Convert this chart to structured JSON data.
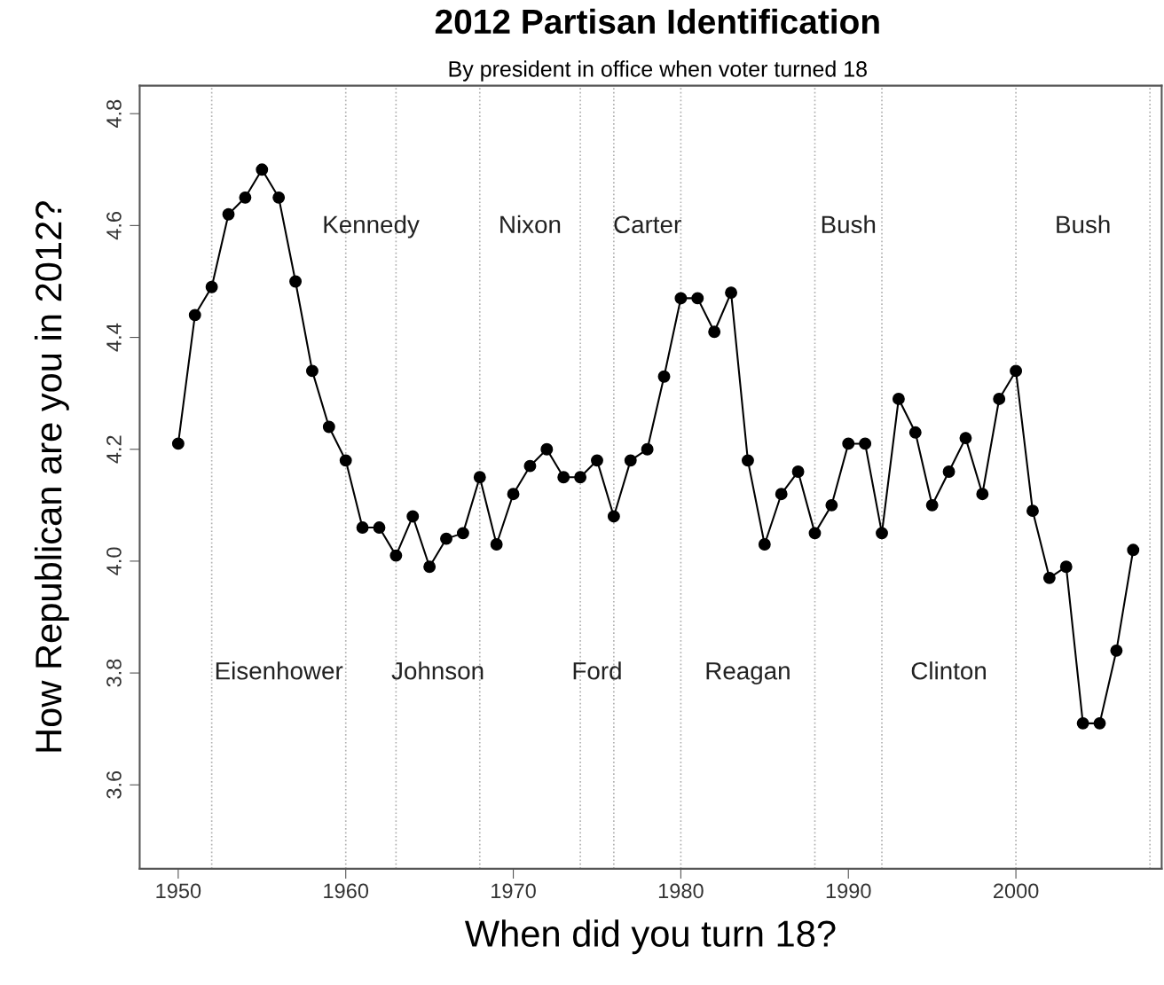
{
  "chart_data": {
    "type": "line",
    "title": "2012 Partisan Identification",
    "subtitle": "By president in office when voter turned 18",
    "xlabel": "When did you turn 18?",
    "ylabel": "How Republican are you in 2012?",
    "x": [
      1950,
      1951,
      1952,
      1953,
      1954,
      1955,
      1956,
      1957,
      1958,
      1959,
      1960,
      1961,
      1962,
      1963,
      1964,
      1965,
      1966,
      1967,
      1968,
      1969,
      1970,
      1971,
      1972,
      1973,
      1974,
      1975,
      1976,
      1977,
      1978,
      1979,
      1980,
      1981,
      1982,
      1983,
      1984,
      1985,
      1986,
      1987,
      1988,
      1989,
      1990,
      1991,
      1992,
      1993,
      1994,
      1995,
      1996,
      1997,
      1998,
      1999,
      2000,
      2001,
      2002,
      2003,
      2004,
      2005,
      2006,
      2007
    ],
    "series": [
      {
        "color": "#000000",
        "values": [
          4.21,
          4.44,
          4.49,
          4.62,
          4.65,
          4.7,
          4.65,
          4.5,
          4.34,
          4.24,
          4.18,
          4.06,
          4.06,
          4.01,
          4.08,
          3.99,
          4.04,
          4.05,
          4.15,
          4.03,
          4.12,
          4.17,
          4.2,
          4.15,
          4.15,
          4.18,
          4.08,
          4.18,
          4.2,
          4.33,
          4.47,
          4.47,
          4.41,
          4.48,
          4.18,
          4.03,
          4.12,
          4.16,
          4.05,
          4.1,
          4.21,
          4.21,
          4.05,
          4.29,
          4.23,
          4.1,
          4.16,
          4.22,
          4.12,
          4.29,
          4.34,
          4.09,
          3.97,
          3.99,
          3.71,
          3.71,
          3.84,
          4.02
        ]
      }
    ],
    "marker": "circle",
    "line_style": "solid",
    "grid": false,
    "legend": false,
    "xlim": [
      1947.7,
      2008.7
    ],
    "ylim": [
      3.45,
      4.85
    ],
    "xticks": [
      1950,
      1960,
      1970,
      1980,
      1990,
      2000
    ],
    "yticks": [
      3.6,
      3.8,
      {
        "value": 4.0,
        "label": "4.0"
      },
      4.2,
      4.4,
      4.6,
      4.8
    ],
    "ref_lines": [
      {
        "axis": "x",
        "value": 1952,
        "label": "Eisenhower",
        "color": "#b0b0b0",
        "line_style": "dotted"
      },
      {
        "axis": "x",
        "value": 1960,
        "label": "Kennedy",
        "color": "#b0b0b0",
        "line_style": "dotted"
      },
      {
        "axis": "x",
        "value": 1963,
        "label": "Johnson",
        "color": "#b0b0b0",
        "line_style": "dotted"
      },
      {
        "axis": "x",
        "value": 1968,
        "label": "Nixon",
        "color": "#b0b0b0",
        "line_style": "dotted"
      },
      {
        "axis": "x",
        "value": 1974,
        "label": "Ford",
        "color": "#b0b0b0",
        "line_style": "dotted"
      },
      {
        "axis": "x",
        "value": 1976,
        "label": "Carter",
        "color": "#b0b0b0",
        "line_style": "dotted"
      },
      {
        "axis": "x",
        "value": 1980,
        "label": "Reagan",
        "color": "#b0b0b0",
        "line_style": "dotted"
      },
      {
        "axis": "x",
        "value": 1988,
        "label": "Bush",
        "color": "#b0b0b0",
        "line_style": "dotted"
      },
      {
        "axis": "x",
        "value": 1992,
        "label": "Clinton",
        "color": "#b0b0b0",
        "line_style": "dotted"
      },
      {
        "axis": "x",
        "value": 2000,
        "label": "Bush",
        "color": "#b0b0b0",
        "line_style": "dotted"
      },
      {
        "axis": "x",
        "value": 2008,
        "color": "#b0b0b0",
        "line_style": "dotted"
      }
    ]
  }
}
